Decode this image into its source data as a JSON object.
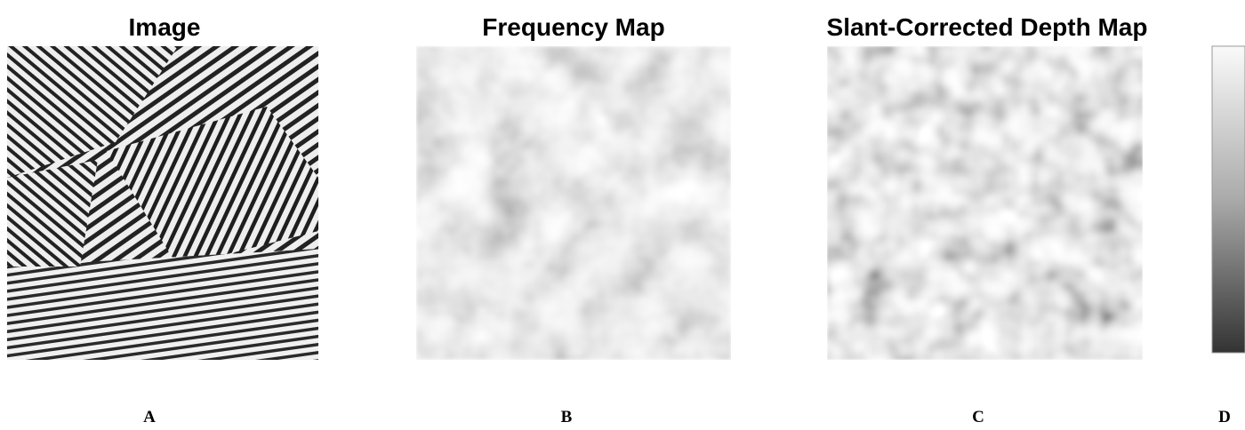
{
  "panels": [
    {
      "title": "Image",
      "label": "A"
    },
    {
      "title": "Frequency Map",
      "label": "B"
    },
    {
      "title": "Slant-Corrected Depth Map",
      "label": "C"
    },
    {
      "label": "D"
    }
  ]
}
